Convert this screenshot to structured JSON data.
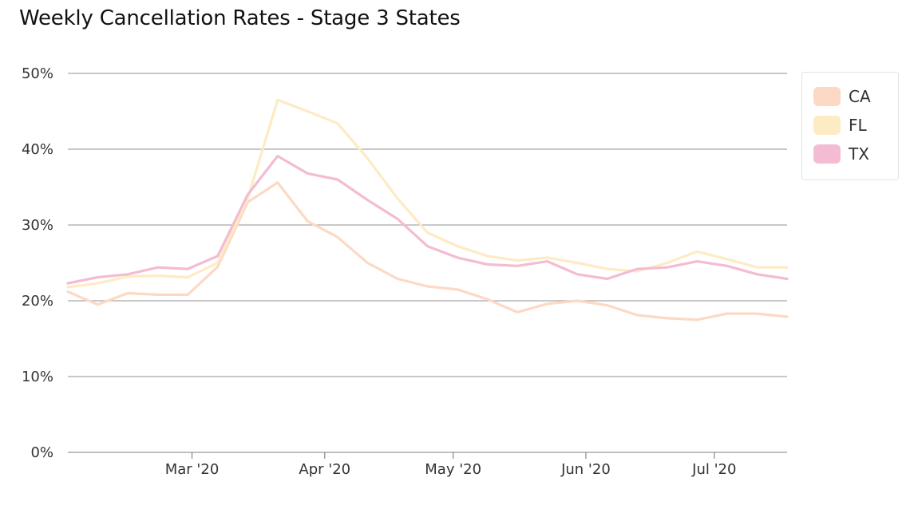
{
  "chart_data": {
    "type": "line",
    "title": "Weekly Cancellation Rates - Stage 3 States",
    "xlabel": "",
    "ylabel": "",
    "ylim": [
      0,
      50
    ],
    "yticks": [
      "0%",
      "10%",
      "20%",
      "30%",
      "40%",
      "50%"
    ],
    "ytick_values": [
      0,
      10,
      20,
      30,
      40,
      50
    ],
    "x": [
      "2020-02-01",
      "2020-02-08",
      "2020-02-15",
      "2020-02-22",
      "2020-02-29",
      "2020-03-07",
      "2020-03-14",
      "2020-03-21",
      "2020-03-28",
      "2020-04-04",
      "2020-04-11",
      "2020-04-18",
      "2020-04-25",
      "2020-05-02",
      "2020-05-09",
      "2020-05-16",
      "2020-05-23",
      "2020-05-30",
      "2020-06-06",
      "2020-06-13",
      "2020-06-20",
      "2020-06-27",
      "2020-07-04",
      "2020-07-11",
      "2020-07-18"
    ],
    "xlim": [
      "2020-02-01",
      "2020-07-18"
    ],
    "xticks": [
      {
        "label": "Mar '20",
        "date": "2020-03-01"
      },
      {
        "label": "Apr '20",
        "date": "2020-04-01"
      },
      {
        "label": "May '20",
        "date": "2020-05-01"
      },
      {
        "label": "Jun '20",
        "date": "2020-06-01"
      },
      {
        "label": "Jul '20",
        "date": "2020-07-01"
      }
    ],
    "grid": true,
    "legend_position": "top-right",
    "series": [
      {
        "name": "CA",
        "color": "#fcd9c4",
        "values": [
          21.2,
          19.5,
          21.0,
          20.8,
          20.8,
          24.5,
          33.0,
          35.6,
          30.5,
          28.4,
          25.0,
          22.9,
          21.9,
          21.5,
          20.2,
          18.5,
          19.6,
          20.0,
          19.4,
          18.1,
          17.7,
          17.5,
          18.3,
          18.3,
          17.9
        ]
      },
      {
        "name": "FL",
        "color": "#fdebc4",
        "values": [
          21.8,
          22.3,
          23.2,
          23.3,
          23.1,
          25.0,
          33.5,
          46.5,
          45.0,
          43.4,
          38.8,
          33.5,
          29.0,
          27.2,
          25.9,
          25.3,
          25.7,
          25.0,
          24.2,
          23.9,
          25.0,
          26.5,
          25.5,
          24.4,
          24.4
        ]
      },
      {
        "name": "TX",
        "color": "#f4bcd2",
        "values": [
          22.3,
          23.1,
          23.5,
          24.4,
          24.2,
          25.9,
          34.0,
          39.1,
          36.8,
          36.0,
          33.3,
          30.8,
          27.2,
          25.7,
          24.8,
          24.6,
          25.2,
          23.5,
          22.9,
          24.2,
          24.4,
          25.2,
          24.6,
          23.5,
          22.9
        ]
      }
    ]
  }
}
